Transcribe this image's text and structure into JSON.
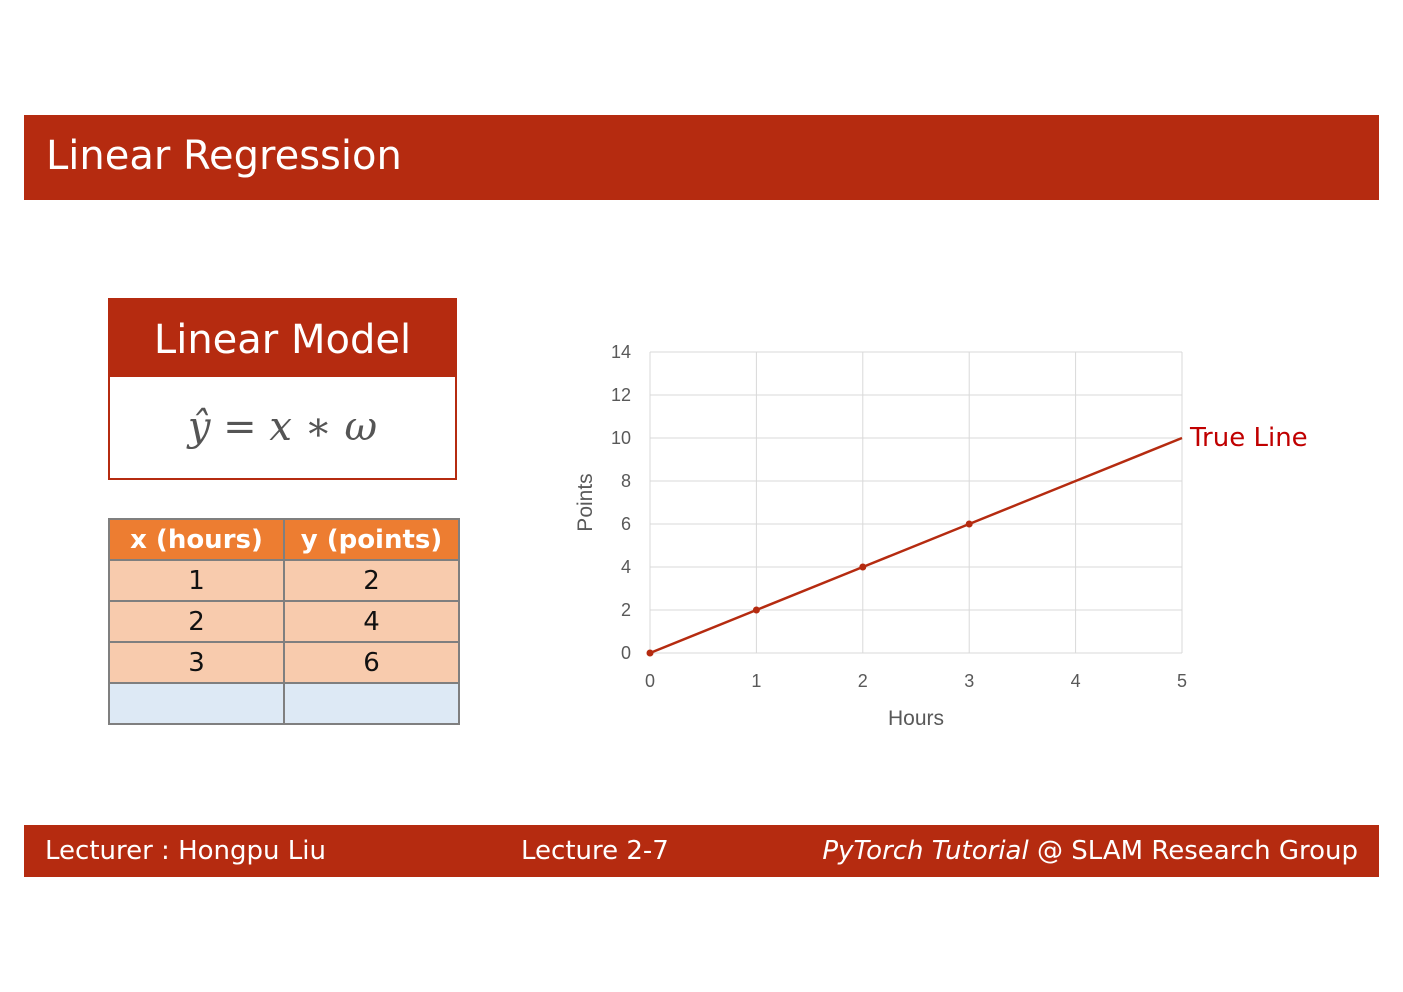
{
  "slide": {
    "title": "Linear Regression"
  },
  "model": {
    "heading": "Linear Model",
    "formula": "ŷ = x ∗ ω"
  },
  "table": {
    "headers": [
      "x (hours)",
      "y (points)"
    ],
    "rows": [
      [
        "1",
        "2"
      ],
      [
        "2",
        "4"
      ],
      [
        "3",
        "6"
      ],
      [
        "",
        ""
      ]
    ]
  },
  "chart_data": {
    "type": "line",
    "title": "",
    "xlabel": "Hours",
    "ylabel": "Points",
    "xlim": [
      0,
      5
    ],
    "ylim": [
      0,
      14
    ],
    "x_ticks": [
      0,
      1,
      2,
      3,
      4,
      5
    ],
    "y_ticks": [
      0,
      2,
      4,
      6,
      8,
      10,
      12,
      14
    ],
    "grid": true,
    "series": [
      {
        "name": "True Line",
        "x": [
          0,
          1,
          2,
          3,
          4,
          5
        ],
        "y": [
          0,
          2,
          4,
          6,
          8,
          10
        ],
        "markers_at": [
          0,
          1,
          2,
          3
        ],
        "color": "#b52b10"
      }
    ],
    "annotation": {
      "text": "True Line",
      "color": "#c00000"
    }
  },
  "footer": {
    "lecturer": "Lecturer : Hongpu Liu",
    "lecture": "Lecture 2-7",
    "course_italic": "PyTorch Tutorial",
    "course_rest": " @ SLAM Research Group"
  },
  "colors": {
    "brand": "#b52b10",
    "header_orange": "#ed7d31",
    "cell_orange": "#f8cbad",
    "cell_blue": "#dde9f5"
  }
}
